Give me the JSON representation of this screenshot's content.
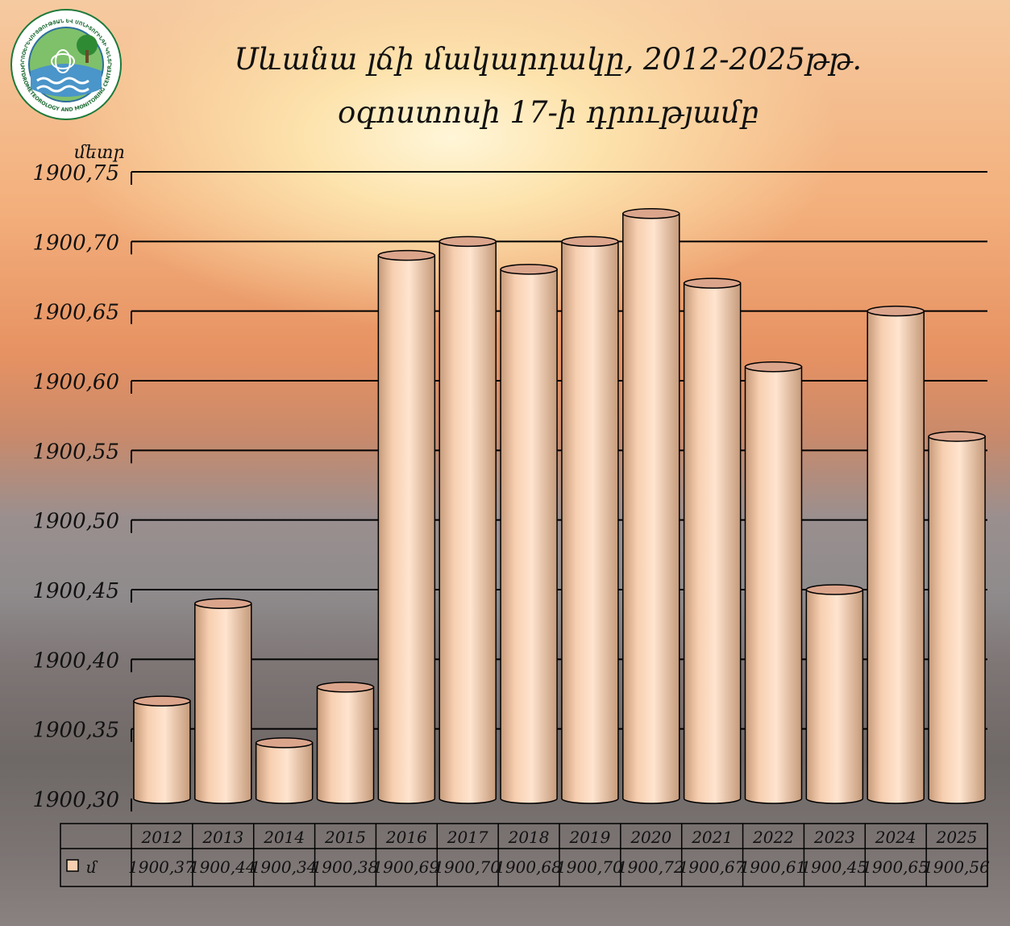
{
  "logo": {
    "top_text": "ՀԻԴՐՈՕԵՐԵՎՈՒՅԹՈՒԹՅԱՆ ԵՎ ՄՈՆԻՏՈՐԻՆԳԻ ԿԵՆՏՐՈՆ",
    "bottom_text": "HYDROMETEOROLOGY AND MONITORING CENTER"
  },
  "chart_data": {
    "type": "bar",
    "title": "Սևանա լճի մակարդակը, 2012-2025թթ.",
    "subtitle": "օգոստոսի 17-ի դրությամբ",
    "ylabel": "մետր",
    "categories": [
      "2012",
      "2013",
      "2014",
      "2015",
      "2016",
      "2017",
      "2018",
      "2019",
      "2020",
      "2021",
      "2022",
      "2023",
      "2024",
      "2025"
    ],
    "series": [
      {
        "name": "մ",
        "values": [
          1900.37,
          1900.44,
          1900.34,
          1900.38,
          1900.69,
          1900.7,
          1900.68,
          1900.7,
          1900.72,
          1900.67,
          1900.61,
          1900.45,
          1900.65,
          1900.56
        ],
        "value_labels": [
          "1900,37",
          "1900,44",
          "1900,34",
          "1900,38",
          "1900,69",
          "1900,70",
          "1900,68",
          "1900,70",
          "1900,72",
          "1900,67",
          "1900,61",
          "1900,45",
          "1900,65",
          "1900,56"
        ]
      }
    ],
    "ylim": [
      1900.3,
      1900.75
    ],
    "yticks": [
      "1900,30",
      "1900,35",
      "1900,40",
      "1900,45",
      "1900,50",
      "1900,55",
      "1900,60",
      "1900,65",
      "1900,70",
      "1900,75"
    ],
    "grid": true,
    "legend": "data-table-bottom",
    "colors": {
      "bar": "#f7cfb0",
      "bar_dark": "#c59a7a",
      "top": "#dba58c",
      "grid": "#000000"
    }
  }
}
